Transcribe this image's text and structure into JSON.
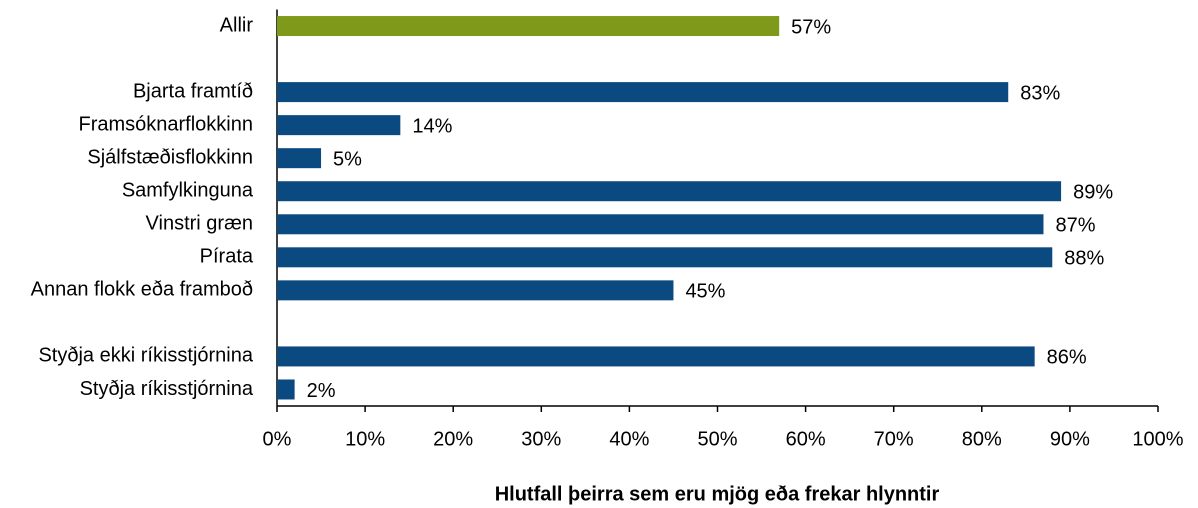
{
  "chart_data": {
    "type": "barh",
    "xlabel": "Hlutfall þeirra sem eru mjög eða frekar hlynntir",
    "categories": [
      "Allir",
      null,
      "Bjarta framtíð",
      "Framsóknarflokkinn",
      "Sjálfstæðisflokkinn",
      "Samfylkinguna",
      "Vinstri græn",
      "Pírata",
      "Annan flokk eða framboð",
      null,
      "Styðja ekki ríkisstjórnina",
      "Styðja ríkisstjórnina"
    ],
    "values": [
      57,
      null,
      83,
      14,
      5,
      89,
      87,
      88,
      45,
      null,
      86,
      2
    ],
    "value_labels": [
      "57%",
      null,
      "83%",
      "14%",
      "5%",
      "89%",
      "87%",
      "88%",
      "45%",
      null,
      "86%",
      "2%"
    ],
    "colors": [
      "#7f9a1a",
      null,
      "#0b4a80",
      "#0b4a80",
      "#0b4a80",
      "#0b4a80",
      "#0b4a80",
      "#0b4a80",
      "#0b4a80",
      null,
      "#0b4a80",
      "#0b4a80"
    ],
    "xlim": [
      0,
      100
    ],
    "xticks": [
      {
        "value": 0,
        "label": "0%"
      },
      {
        "value": 10,
        "label": "10%"
      },
      {
        "value": 20,
        "label": "20%"
      },
      {
        "value": 30,
        "label": "30%"
      },
      {
        "value": 40,
        "label": "40%"
      },
      {
        "value": 50,
        "label": "50%"
      },
      {
        "value": 60,
        "label": "60%"
      },
      {
        "value": 70,
        "label": "70%"
      },
      {
        "value": 80,
        "label": "80%"
      },
      {
        "value": 90,
        "label": "90%"
      },
      {
        "value": 100,
        "label": "100%"
      }
    ],
    "grid": false
  }
}
